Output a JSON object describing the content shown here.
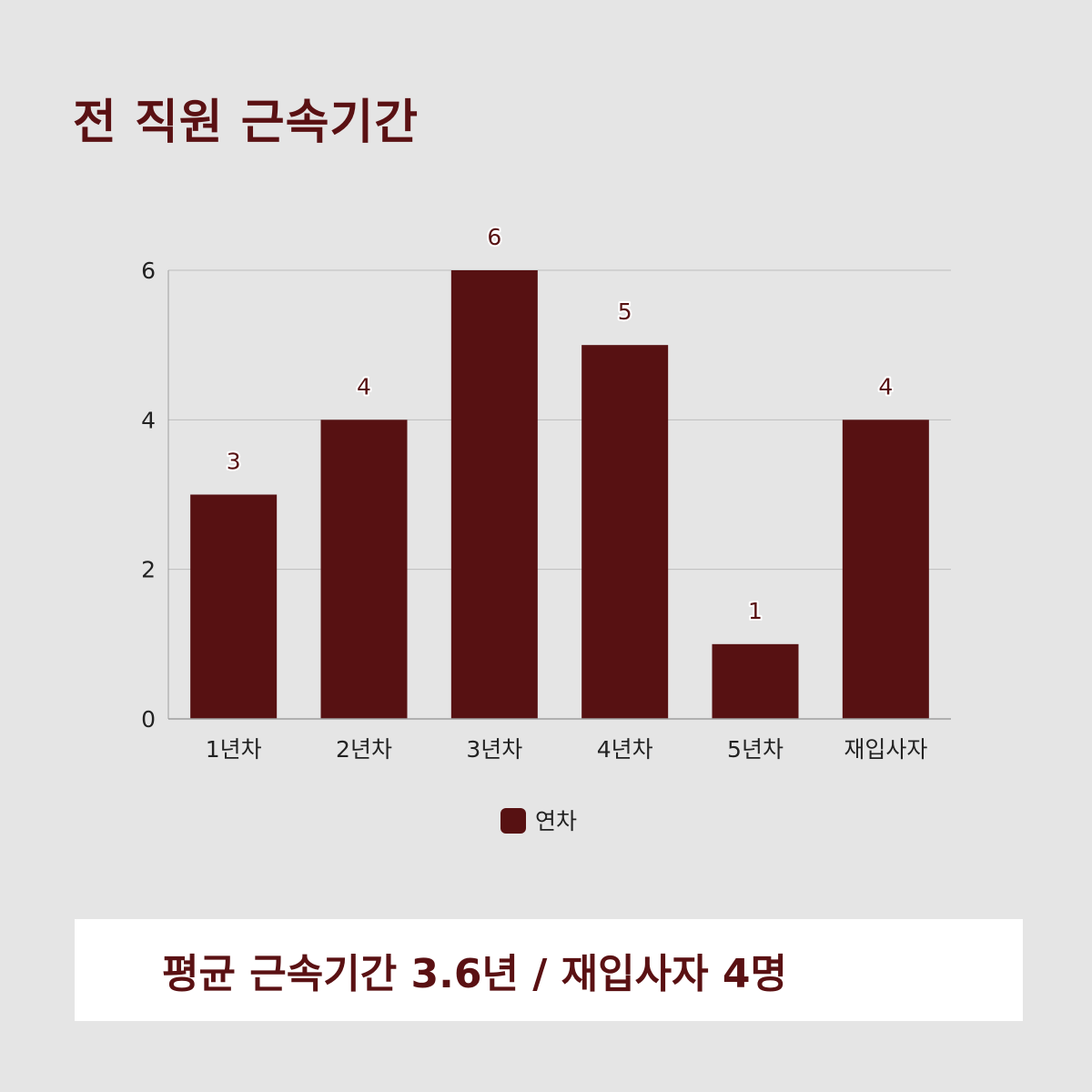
{
  "title": "전 직원 근속기간",
  "summary": "평균 근속기간 3.6년 / 재입사자 4명",
  "chart_data": {
    "type": "bar",
    "categories": [
      "1년차",
      "2년차",
      "3년차",
      "4년차",
      "5년차",
      "재입사자"
    ],
    "series": [
      {
        "name": "연차",
        "values": [
          3,
          4,
          6,
          5,
          1,
          4
        ],
        "color": "#571112"
      }
    ],
    "ylim": [
      0,
      6
    ],
    "yticks": [
      0,
      2,
      4,
      6
    ],
    "grid": true,
    "data_labels": true,
    "legend_position": "bottom"
  }
}
